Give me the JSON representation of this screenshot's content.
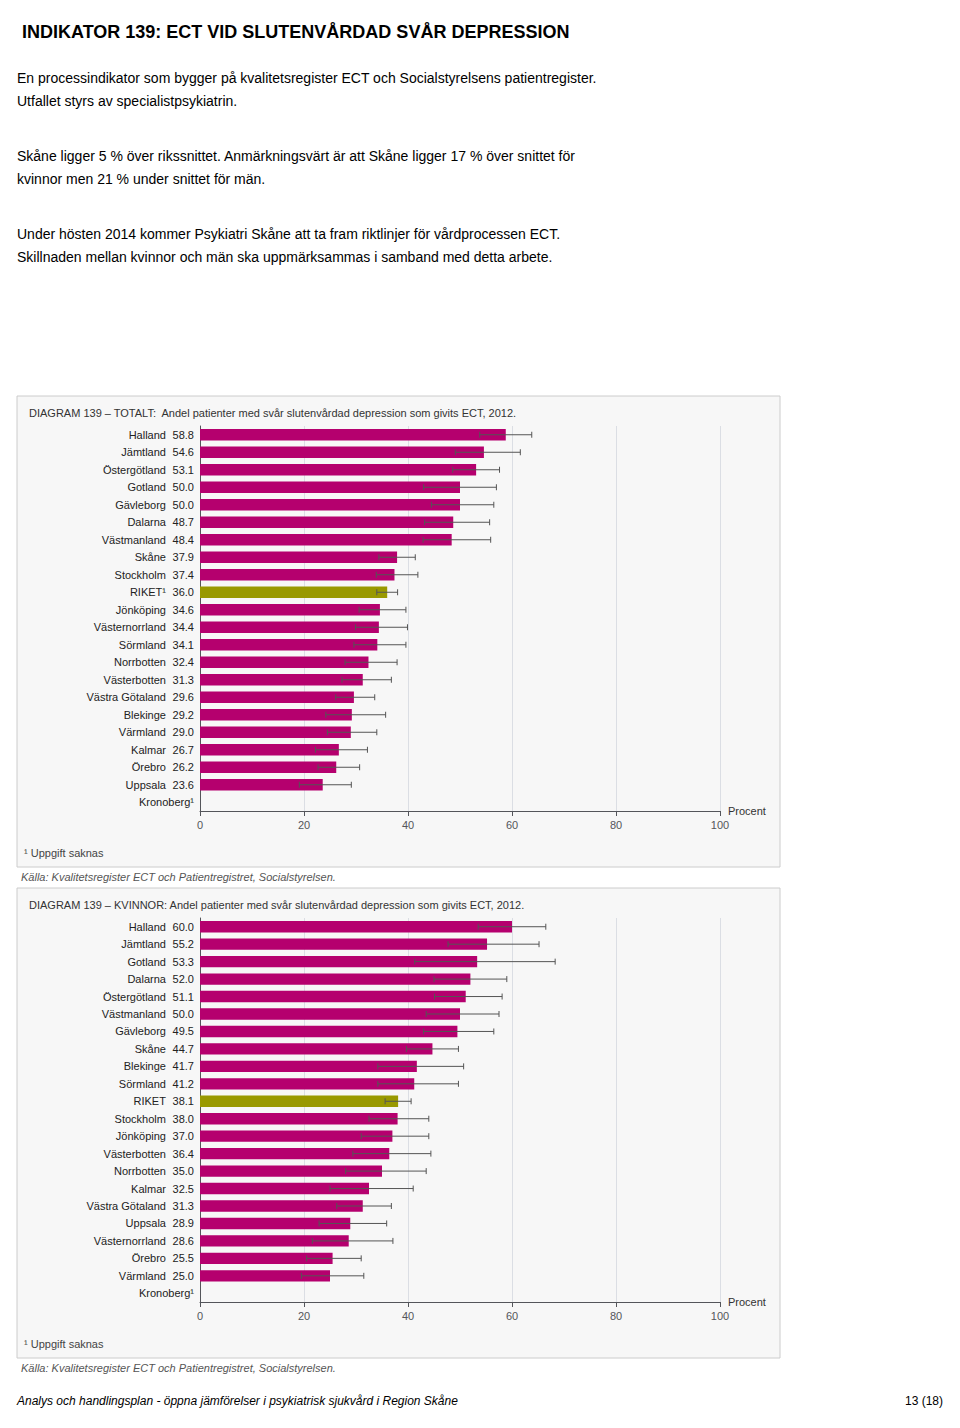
{
  "title": "INDIKATOR 139: ECT VID SLUTENVÅRDAD SVÅR DEPRESSION",
  "annotations": [
    "En processindikator som bygger på kvalitetsregister ECT och Socialstyrelsens patientregister.\nUtfallet styrs av specialistpsykiatrin.",
    "Skåne ligger 5 % över rikssnittet. Anmärkningsvärt är att Skåne ligger 17 % över snittet för\nkvinnor men 21 % under snittet för män.",
    "Under hösten 2014 kommer Psykiatri Skåne att ta fram riktlinjer för vårdprocessen ECT.\nSkillnaden mellan kvinnor och män ska uppmärksammas i samband med detta arbete.",
    "Analys och handlingsplan - öppna jämförelser i psykiatrisk sjukvård i Region Skåne",
    "13 (18)"
  ],
  "chart_data": [
    {
      "type": "bar",
      "orientation": "horizontal",
      "title": "DIAGRAM 139 – TOTALT:  Andel patienter med svår slutenvårdad depression som givits ECT, 2012.",
      "categories": [
        "Halland",
        "Jämtland",
        "Östergötland",
        "Gotland",
        "Gävleborg",
        "Dalarna",
        "Västmanland",
        "Skåne",
        "Stockholm",
        "RIKET¹",
        "Jönköping",
        "Västernorrland",
        "Sörmland",
        "Norrbotten",
        "Västerbotten",
        "Västra Götaland",
        "Blekinge",
        "Värmland",
        "Kalmar",
        "Örebro",
        "Uppsala",
        "Kronoberg¹"
      ],
      "values": [
        58.8,
        54.6,
        53.1,
        50.0,
        50.0,
        48.7,
        48.4,
        37.9,
        37.4,
        36.0,
        34.6,
        34.4,
        34.1,
        32.4,
        31.3,
        29.6,
        29.2,
        29.0,
        26.7,
        26.2,
        23.6,
        null
      ],
      "value_labels": [
        "58.8",
        "54.6",
        "53.1",
        "50.0",
        "50.0",
        "48.7",
        "48.4",
        "37.9",
        "37.4",
        "36.0",
        "34.6",
        "34.4",
        "34.1",
        "32.4",
        "31.3",
        "29.6",
        "29.2",
        "29.0",
        "26.7",
        "26.2",
        "23.6",
        null
      ],
      "data_labels": true,
      "error_low": [
        5.0,
        5.5,
        4.5,
        7.0,
        5.5,
        5.5,
        5.5,
        3.5,
        3.5,
        2.0,
        4.0,
        4.5,
        4.5,
        4.5,
        4.0,
        3.5,
        5.0,
        4.5,
        4.5,
        3.5,
        4.5,
        null
      ],
      "error_high": [
        5.0,
        7.0,
        4.5,
        7.0,
        6.5,
        7.0,
        7.5,
        3.5,
        4.5,
        2.0,
        5.0,
        5.5,
        5.5,
        5.5,
        5.5,
        4.0,
        6.5,
        5.0,
        5.5,
        4.5,
        5.5,
        null
      ],
      "colors": [
        "#b5006e",
        "#b5006e",
        "#b5006e",
        "#b5006e",
        "#b5006e",
        "#b5006e",
        "#b5006e",
        "#b5006e",
        "#b5006e",
        "#999900",
        "#b5006e",
        "#b5006e",
        "#b5006e",
        "#b5006e",
        "#b5006e",
        "#b5006e",
        "#b5006e",
        "#b5006e",
        "#b5006e",
        "#b5006e",
        "#b5006e",
        "#b5006e"
      ],
      "xlim": [
        0,
        100
      ],
      "xticks": [
        0,
        20,
        40,
        60,
        80,
        100
      ],
      "xlabel": "Procent",
      "grid": true,
      "annotations": [
        "¹ Uppgift saknas",
        "Källa: Kvalitetsregister ECT och Patientregistret, Socialstyrelsen."
      ]
    },
    {
      "type": "bar",
      "orientation": "horizontal",
      "title": "DIAGRAM 139 – KVINNOR: Andel patienter med svår slutenvårdad depression som givits ECT, 2012.",
      "categories": [
        "Halland",
        "Jämtland",
        "Gotland",
        "Dalarna",
        "Östergötland",
        "Västmanland",
        "Gävleborg",
        "Skåne",
        "Blekinge",
        "Sörmland",
        "RIKET",
        "Stockholm",
        "Jönköping",
        "Västerbotten",
        "Norrbotten",
        "Kalmar",
        "Västra Götaland",
        "Uppsala",
        "Västernorrland",
        "Örebro",
        "Värmland",
        "Kronoberg¹"
      ],
      "values": [
        60.0,
        55.2,
        53.3,
        52.0,
        51.1,
        50.0,
        49.5,
        44.7,
        41.7,
        41.2,
        38.1,
        38.0,
        37.0,
        36.4,
        35.0,
        32.5,
        31.3,
        28.9,
        28.6,
        25.5,
        25.0,
        null
      ],
      "value_labels": [
        "60.0",
        "55.2",
        "53.3",
        "52.0",
        "51.1",
        "50.0",
        "49.5",
        "44.7",
        "41.7",
        "41.2",
        "38.1",
        "38.0",
        "37.0",
        "36.4",
        "35.0",
        "32.5",
        "31.3",
        "28.9",
        "28.6",
        "25.5",
        "25.0",
        null
      ],
      "data_labels": true,
      "error_low": [
        6.5,
        7.5,
        12.0,
        7.0,
        6.0,
        6.5,
        6.5,
        5.0,
        7.5,
        7.0,
        2.5,
        5.5,
        6.0,
        7.0,
        7.0,
        7.5,
        5.0,
        6.0,
        7.0,
        5.0,
        5.5,
        null
      ],
      "error_high": [
        6.5,
        10.0,
        15.0,
        7.0,
        7.0,
        7.5,
        7.0,
        5.0,
        9.0,
        8.5,
        2.5,
        6.0,
        7.0,
        8.0,
        8.5,
        8.5,
        5.5,
        7.0,
        8.5,
        5.5,
        6.5,
        null
      ],
      "colors": [
        "#b5006e",
        "#b5006e",
        "#b5006e",
        "#b5006e",
        "#b5006e",
        "#b5006e",
        "#b5006e",
        "#b5006e",
        "#b5006e",
        "#b5006e",
        "#999900",
        "#b5006e",
        "#b5006e",
        "#b5006e",
        "#b5006e",
        "#b5006e",
        "#b5006e",
        "#b5006e",
        "#b5006e",
        "#b5006e",
        "#b5006e",
        "#b5006e"
      ],
      "xlim": [
        0,
        100
      ],
      "xticks": [
        0,
        20,
        40,
        60,
        80,
        100
      ],
      "xlabel": "Procent",
      "grid": true,
      "annotations": [
        "¹ Uppgift saknas",
        "Källa: Kvalitetsregister ECT och Patientregistret, Socialstyrelsen."
      ]
    }
  ]
}
